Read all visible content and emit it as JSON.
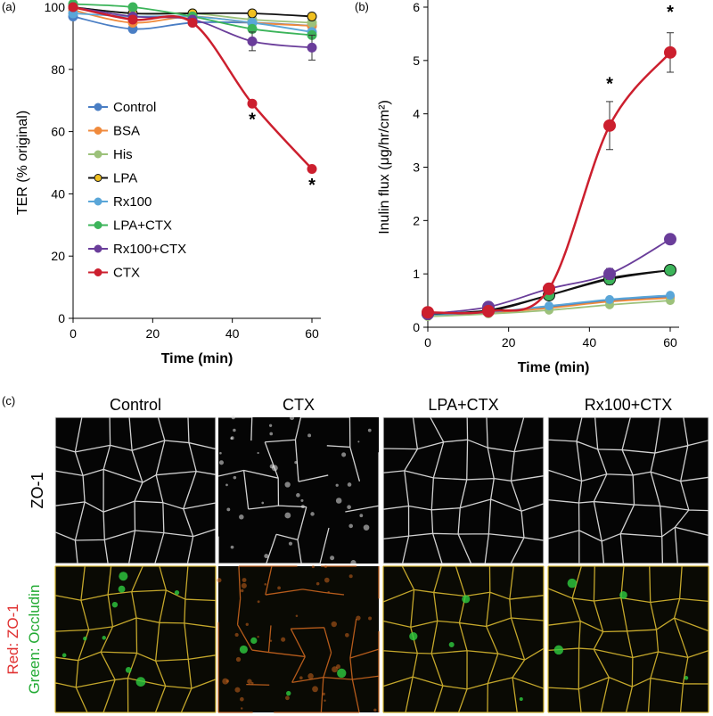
{
  "panel_labels": {
    "a": "(a)",
    "b": "(b)",
    "c": "(c)"
  },
  "chart_data": [
    {
      "id": "a",
      "type": "line",
      "title": "",
      "xlabel": "Time (min)",
      "ylabel": "TER (% original)",
      "xlim": [
        0,
        60
      ],
      "ylim": [
        0,
        100
      ],
      "x_ticks": [
        0,
        20,
        40,
        60
      ],
      "y_ticks": [
        0,
        20,
        40,
        60,
        80,
        100
      ],
      "grid": false,
      "legend_position": "center-left",
      "x": [
        0,
        15,
        30,
        45,
        60
      ],
      "series": [
        {
          "name": "Control",
          "color": "#4a7ec4",
          "marker_face": "#4a7ec4",
          "values": [
            97,
            93,
            95,
            95,
            94
          ]
        },
        {
          "name": "BSA",
          "color": "#f08a3c",
          "marker_face": "#f08a3c",
          "values": [
            99,
            95,
            97,
            95,
            94
          ]
        },
        {
          "name": "His",
          "color": "#9cc17a",
          "marker_face": "#9cc17a",
          "values": [
            100,
            98,
            98,
            96,
            95
          ]
        },
        {
          "name": "LPA",
          "color": "#111111",
          "marker_face": "#f0c020",
          "values": [
            100,
            98,
            98,
            98,
            97
          ]
        },
        {
          "name": "Rx100",
          "color": "#5aa6d8",
          "marker_face": "#5aa6d8",
          "values": [
            98,
            97,
            97,
            95,
            92
          ]
        },
        {
          "name": "LPA+CTX",
          "color": "#3cb45a",
          "marker_face": "#3cb45a",
          "values": [
            101,
            100,
            97,
            93,
            91
          ]
        },
        {
          "name": "Rx100+CTX",
          "color": "#6a3d9a",
          "marker_face": "#6a3d9a",
          "values": [
            100,
            97,
            96,
            89,
            87
          ]
        },
        {
          "name": "CTX",
          "color": "#cc1f2e",
          "marker_face": "#cc1f2e",
          "values": [
            100,
            96,
            95,
            69,
            48
          ]
        }
      ],
      "error_bars": {
        "Rx100+CTX": [
          0,
          0,
          0,
          3,
          4
        ]
      },
      "annotations": [
        {
          "text": "*",
          "x": 45,
          "y": 62
        },
        {
          "text": "*",
          "x": 60,
          "y": 41
        }
      ]
    },
    {
      "id": "b",
      "type": "line",
      "title": "",
      "xlabel": "Time (min)",
      "ylabel": "Inulin flux (μg/hr/cm²)",
      "xlim": [
        0,
        60
      ],
      "ylim": [
        0,
        6
      ],
      "x_ticks": [
        0,
        20,
        40,
        60
      ],
      "y_ticks": [
        0,
        1,
        2,
        3,
        4,
        5,
        6
      ],
      "grid": false,
      "x": [
        0,
        15,
        30,
        45,
        60
      ],
      "series": [
        {
          "name": "Control",
          "color": "#4a7ec4",
          "marker_face": "#4a7ec4",
          "values": [
            0.22,
            0.28,
            0.38,
            0.5,
            0.58
          ]
        },
        {
          "name": "BSA",
          "color": "#f08a3c",
          "marker_face": "#f08a3c",
          "values": [
            0.22,
            0.27,
            0.36,
            0.48,
            0.55
          ]
        },
        {
          "name": "His",
          "color": "#9cc17a",
          "marker_face": "#9cc17a",
          "values": [
            0.2,
            0.25,
            0.32,
            0.42,
            0.5
          ]
        },
        {
          "name": "LPA",
          "color": "#111111",
          "marker_face": "#111111",
          "values": [
            0.24,
            0.3,
            0.6,
            0.92,
            1.07
          ]
        },
        {
          "name": "Rx100",
          "color": "#5aa6d8",
          "marker_face": "#5aa6d8",
          "values": [
            0.23,
            0.28,
            0.4,
            0.52,
            0.6
          ]
        },
        {
          "name": "LPA+CTX",
          "color": "#111111",
          "marker_face": "#3cb45a",
          "values": [
            0.25,
            0.32,
            0.6,
            0.9,
            1.07
          ]
        },
        {
          "name": "Rx100+CTX",
          "color": "#6a3d9a",
          "marker_face": "#6a3d9a",
          "values": [
            0.25,
            0.38,
            0.72,
            1.0,
            1.65
          ]
        },
        {
          "name": "CTX",
          "color": "#cc1f2e",
          "marker_face": "#cc1f2e",
          "values": [
            0.28,
            0.3,
            0.72,
            3.78,
            5.15
          ]
        }
      ],
      "error_bars": {
        "CTX": [
          0,
          0,
          0,
          0.45,
          0.37
        ],
        "LPA": [
          0,
          0,
          0,
          0.12,
          0
        ],
        "Rx100+CTX": [
          0,
          0,
          0,
          0.1,
          0
        ]
      },
      "annotations": [
        {
          "text": "*",
          "x": 45,
          "y": 4.45
        },
        {
          "text": "*",
          "x": 60,
          "y": 5.8
        }
      ]
    }
  ],
  "micrographs": {
    "columns": [
      "Control",
      "CTX",
      "LPA+CTX",
      "Rx100+CTX"
    ],
    "row_labels": {
      "top": "ZO-1",
      "bottom_red": "Red: ZO-1",
      "bottom_green": "Green: Occludin"
    },
    "colors": {
      "red_label": "#e03030",
      "green_label": "#22aa33",
      "membrane_top": "#e8e8e8",
      "membrane_bottom": "#d8b830"
    }
  }
}
